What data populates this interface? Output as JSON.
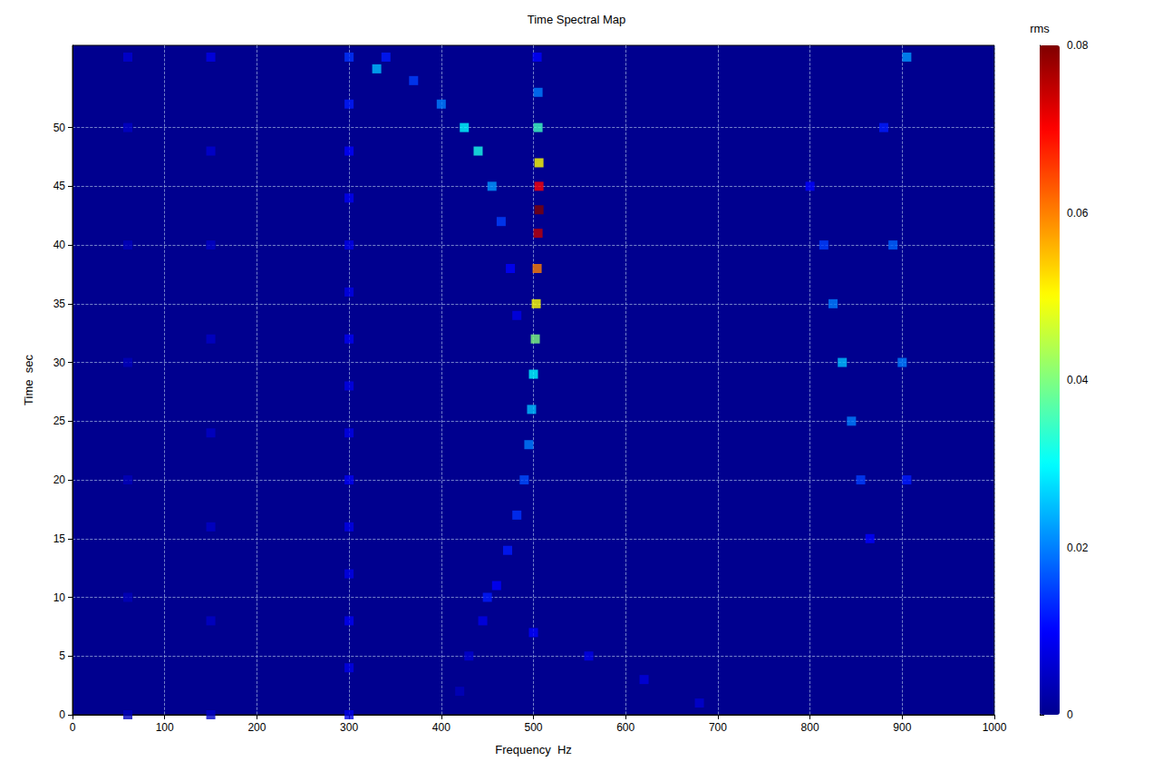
{
  "chart_data": {
    "type": "scatter",
    "title": "Time Spectral Map",
    "x_label": "Frequency  Hz",
    "y_label": "Time  sec",
    "xlim": [
      0,
      1000
    ],
    "xticks": [
      0,
      100,
      200,
      300,
      400,
      500,
      600,
      700,
      800,
      900,
      1000
    ],
    "ylim": [
      0,
      57
    ],
    "yticks": [
      0,
      5,
      10,
      15,
      20,
      25,
      30,
      35,
      40,
      45,
      50
    ],
    "rms_label": "rms",
    "rms_range": [
      0,
      0.08
    ],
    "rms_ticks": [
      0,
      0.02,
      0.04,
      0.06,
      0.08
    ],
    "grid": true,
    "marker": "square",
    "series": [
      {
        "values": [
          [
            420,
            2,
            0.004
          ],
          [
            430,
            5,
            0.006
          ],
          [
            445,
            8,
            0.008
          ],
          [
            460,
            11,
            0.01
          ],
          [
            472,
            14,
            0.012
          ],
          [
            482,
            17,
            0.014
          ],
          [
            490,
            20,
            0.016
          ],
          [
            495,
            23,
            0.02
          ],
          [
            498,
            26,
            0.025
          ],
          [
            500,
            29,
            0.03
          ],
          [
            502,
            32,
            0.04
          ],
          [
            503,
            35,
            0.05
          ],
          [
            504,
            38,
            0.06
          ],
          [
            505,
            41,
            0.075
          ],
          [
            506,
            43,
            0.08
          ],
          [
            506,
            45,
            0.07
          ],
          [
            506,
            47,
            0.05
          ],
          [
            505,
            50,
            0.035
          ],
          [
            505,
            53,
            0.02
          ],
          [
            504,
            56,
            0.01
          ]
        ]
      },
      {
        "values": [
          [
            330,
            55,
            0.025
          ],
          [
            340,
            56,
            0.012
          ],
          [
            370,
            54,
            0.015
          ],
          [
            400,
            52,
            0.02
          ],
          [
            425,
            50,
            0.03
          ],
          [
            440,
            48,
            0.032
          ],
          [
            455,
            45,
            0.022
          ],
          [
            465,
            42,
            0.015
          ],
          [
            475,
            38,
            0.01
          ],
          [
            482,
            34,
            0.008
          ]
        ]
      },
      {
        "values": [
          [
            450,
            10,
            0.012
          ],
          [
            500,
            7,
            0.01
          ],
          [
            560,
            5,
            0.008
          ],
          [
            620,
            3,
            0.007
          ],
          [
            680,
            1,
            0.006
          ]
        ]
      },
      {
        "values": [
          [
            800,
            45,
            0.01
          ],
          [
            815,
            40,
            0.015
          ],
          [
            825,
            35,
            0.02
          ],
          [
            835,
            30,
            0.025
          ],
          [
            845,
            25,
            0.02
          ],
          [
            855,
            20,
            0.015
          ],
          [
            865,
            15,
            0.01
          ]
        ]
      },
      {
        "values": [
          [
            880,
            50,
            0.012
          ],
          [
            890,
            40,
            0.018
          ],
          [
            900,
            30,
            0.02
          ],
          [
            905,
            20,
            0.012
          ],
          [
            905,
            56,
            0.022
          ]
        ]
      },
      {
        "values": [
          [
            300,
            0,
            0.008
          ],
          [
            300,
            4,
            0.008
          ],
          [
            300,
            8,
            0.009
          ],
          [
            300,
            12,
            0.008
          ],
          [
            300,
            16,
            0.008
          ],
          [
            300,
            20,
            0.009
          ],
          [
            300,
            24,
            0.008
          ],
          [
            300,
            28,
            0.008
          ],
          [
            300,
            32,
            0.009
          ],
          [
            300,
            36,
            0.008
          ],
          [
            300,
            40,
            0.008
          ],
          [
            300,
            44,
            0.009
          ],
          [
            300,
            48,
            0.01
          ],
          [
            300,
            52,
            0.012
          ],
          [
            300,
            56,
            0.014
          ]
        ]
      },
      {
        "values": [
          [
            150,
            0,
            0.005
          ],
          [
            150,
            8,
            0.005
          ],
          [
            150,
            16,
            0.005
          ],
          [
            150,
            24,
            0.005
          ],
          [
            150,
            32,
            0.005
          ],
          [
            150,
            40,
            0.005
          ],
          [
            150,
            48,
            0.006
          ],
          [
            150,
            56,
            0.008
          ]
        ]
      },
      {
        "values": [
          [
            60,
            0,
            0.004
          ],
          [
            60,
            10,
            0.004
          ],
          [
            60,
            20,
            0.004
          ],
          [
            60,
            30,
            0.004
          ],
          [
            60,
            40,
            0.004
          ],
          [
            60,
            50,
            0.005
          ],
          [
            60,
            56,
            0.006
          ]
        ]
      }
    ]
  }
}
